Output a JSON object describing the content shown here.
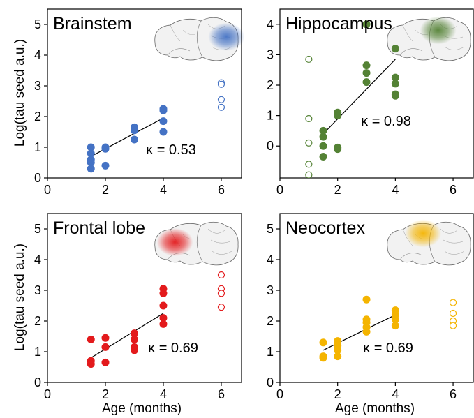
{
  "figure": {
    "ylabel": "Log(tau seed a.u.)",
    "xlabel": "Age (months)"
  },
  "chart_data": [
    {
      "type": "scatter",
      "title": "Brainstem",
      "color": "#4472c4",
      "kappa_label": "κ = 0.53",
      "xlim": [
        0,
        6.7
      ],
      "ylim": [
        0,
        5.5
      ],
      "xticks": [
        0,
        2,
        4,
        6
      ],
      "yticks": [
        0,
        1,
        2,
        3,
        4,
        5
      ],
      "filled_points": [
        [
          1.5,
          1.0
        ],
        [
          1.5,
          0.8
        ],
        [
          1.5,
          0.6
        ],
        [
          1.5,
          0.5
        ],
        [
          1.5,
          0.3
        ],
        [
          2,
          1.0
        ],
        [
          2,
          0.95
        ],
        [
          2,
          0.4
        ],
        [
          3,
          1.65
        ],
        [
          3,
          1.55
        ],
        [
          3,
          1.6
        ],
        [
          3,
          1.25
        ],
        [
          4,
          2.25
        ],
        [
          4,
          2.2
        ],
        [
          4,
          1.85
        ],
        [
          4,
          1.5
        ]
      ],
      "open_points": [
        [
          6,
          3.1
        ],
        [
          6,
          3.05
        ],
        [
          6,
          2.55
        ],
        [
          6,
          2.3
        ]
      ],
      "fit_line": [
        [
          1.5,
          0.7
        ],
        [
          4,
          1.95
        ]
      ],
      "brain_highlight": "caudal"
    },
    {
      "type": "scatter",
      "title": "Hippocampus",
      "color": "#548235",
      "kappa_label": "κ = 0.98",
      "xlim": [
        0,
        6.7
      ],
      "ylim": [
        -1.05,
        4.5
      ],
      "xticks": [
        0,
        2,
        4,
        6
      ],
      "yticks": [
        0,
        1,
        2,
        3,
        4
      ],
      "filled_points": [
        [
          1.5,
          0.5
        ],
        [
          1.5,
          0.3
        ],
        [
          1.5,
          0.0
        ],
        [
          1.5,
          -0.35
        ],
        [
          2,
          1.1
        ],
        [
          2,
          1.0
        ],
        [
          2,
          -0.05
        ],
        [
          2,
          -0.1
        ],
        [
          3,
          4.0
        ],
        [
          3,
          2.65
        ],
        [
          3,
          2.4
        ],
        [
          3,
          2.1
        ],
        [
          4,
          3.2
        ],
        [
          4,
          2.25
        ],
        [
          4,
          2.05
        ],
        [
          4,
          1.7
        ],
        [
          4,
          1.65
        ]
      ],
      "open_points": [
        [
          1,
          2.85
        ],
        [
          1,
          0.9
        ],
        [
          1,
          0.1
        ],
        [
          1,
          -0.6
        ],
        [
          1,
          -0.95
        ]
      ],
      "fit_line": [
        [
          1.5,
          0.4
        ],
        [
          4,
          2.85
        ]
      ],
      "brain_highlight": "center"
    },
    {
      "type": "scatter",
      "title": "Frontal lobe",
      "color": "#e31a1c",
      "kappa_label": "κ = 0.69",
      "xlim": [
        0,
        6.7
      ],
      "ylim": [
        0,
        5.5
      ],
      "xticks": [
        0,
        2,
        4,
        6
      ],
      "yticks": [
        0,
        1,
        2,
        3,
        4,
        5
      ],
      "filled_points": [
        [
          1.5,
          1.4
        ],
        [
          1.5,
          0.7
        ],
        [
          1.5,
          0.6
        ],
        [
          2,
          1.45
        ],
        [
          2,
          1.15
        ],
        [
          2,
          0.65
        ],
        [
          3,
          1.6
        ],
        [
          3,
          1.4
        ],
        [
          3,
          1.15
        ],
        [
          3,
          1.05
        ],
        [
          4,
          3.05
        ],
        [
          4,
          2.9
        ],
        [
          4,
          2.5
        ],
        [
          4,
          2.1
        ],
        [
          4,
          1.9
        ]
      ],
      "open_points": [
        [
          6,
          3.5
        ],
        [
          6,
          3.05
        ],
        [
          6,
          2.9
        ],
        [
          6,
          2.45
        ]
      ],
      "fit_line": [
        [
          1.5,
          0.8
        ],
        [
          4,
          2.25
        ]
      ],
      "brain_highlight": "frontal"
    },
    {
      "type": "scatter",
      "title": "Neocortex",
      "color": "#f4b400",
      "kappa_label": "κ = 0.69",
      "xlim": [
        0,
        6.7
      ],
      "ylim": [
        0,
        5.5
      ],
      "xticks": [
        0,
        2,
        4,
        6
      ],
      "yticks": [
        0,
        1,
        2,
        3,
        4,
        5
      ],
      "filled_points": [
        [
          1.5,
          1.3
        ],
        [
          1.5,
          0.85
        ],
        [
          1.5,
          0.8
        ],
        [
          2,
          1.35
        ],
        [
          2,
          1.2
        ],
        [
          2,
          1.05
        ],
        [
          2,
          0.85
        ],
        [
          3,
          2.7
        ],
        [
          3,
          2.05
        ],
        [
          3,
          1.95
        ],
        [
          3,
          1.8
        ],
        [
          3,
          1.65
        ],
        [
          4,
          2.35
        ],
        [
          4,
          2.2
        ],
        [
          4,
          2.05
        ],
        [
          4,
          1.85
        ]
      ],
      "open_points": [
        [
          6,
          2.6
        ],
        [
          6,
          2.25
        ],
        [
          6,
          2.0
        ],
        [
          6,
          1.85
        ]
      ],
      "fit_line": [
        [
          1.5,
          1.05
        ],
        [
          4,
          2.2
        ]
      ],
      "brain_highlight": "dorsal"
    }
  ]
}
